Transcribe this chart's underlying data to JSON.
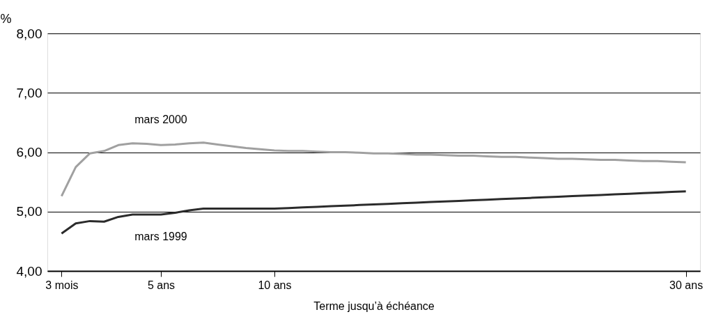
{
  "chart_data": {
    "type": "line",
    "xlabel": "Terme jusqu’à échéance",
    "ylabel": "%",
    "categories": [
      "3 mois",
      null,
      null,
      null,
      null,
      null,
      null,
      "5 ans",
      null,
      null,
      null,
      null,
      null,
      null,
      null,
      "10 ans",
      null,
      null,
      null,
      null,
      null,
      null,
      null,
      null,
      null,
      null,
      null,
      null,
      null,
      null,
      null,
      null,
      null,
      null,
      null,
      null,
      null,
      null,
      null,
      null,
      null,
      null,
      null,
      null,
      "30 ans"
    ],
    "series": [
      {
        "name": "mars 2000",
        "color": "#a0a0a0",
        "values": [
          5.26,
          5.75,
          5.98,
          6.02,
          6.12,
          6.15,
          6.14,
          6.12,
          6.13,
          6.15,
          6.16,
          6.13,
          6.1,
          6.07,
          6.05,
          6.03,
          6.02,
          6.02,
          6.01,
          6.0,
          6.0,
          5.99,
          5.98,
          5.98,
          5.97,
          5.96,
          5.96,
          5.95,
          5.94,
          5.94,
          5.93,
          5.92,
          5.92,
          5.91,
          5.9,
          5.89,
          5.89,
          5.88,
          5.87,
          5.87,
          5.86,
          5.85,
          5.85,
          5.84,
          5.83
        ]
      },
      {
        "name": "mars 1999",
        "color": "#2b2b2b",
        "values": [
          4.63,
          4.8,
          4.84,
          4.83,
          4.91,
          4.95,
          4.95,
          4.95,
          4.98,
          5.02,
          5.05,
          5.05,
          5.05,
          5.05,
          5.05,
          5.05,
          5.06,
          5.07,
          5.08,
          5.09,
          5.1,
          5.11,
          5.12,
          5.13,
          5.14,
          5.15,
          5.16,
          5.17,
          5.18,
          5.19,
          5.2,
          5.21,
          5.22,
          5.23,
          5.24,
          5.25,
          5.26,
          5.27,
          5.28,
          5.29,
          5.3,
          5.31,
          5.32,
          5.33,
          5.34
        ]
      }
    ],
    "ylim": [
      4,
      8
    ],
    "yticks": [
      {
        "value": 4,
        "label": "4,00"
      },
      {
        "value": 5,
        "label": "5,00"
      },
      {
        "value": 6,
        "label": "6,00"
      },
      {
        "value": 7,
        "label": "7,00"
      },
      {
        "value": 8,
        "label": "8,00"
      }
    ],
    "grid": "y",
    "legend": false,
    "marker": "none",
    "line_style": "solid"
  }
}
